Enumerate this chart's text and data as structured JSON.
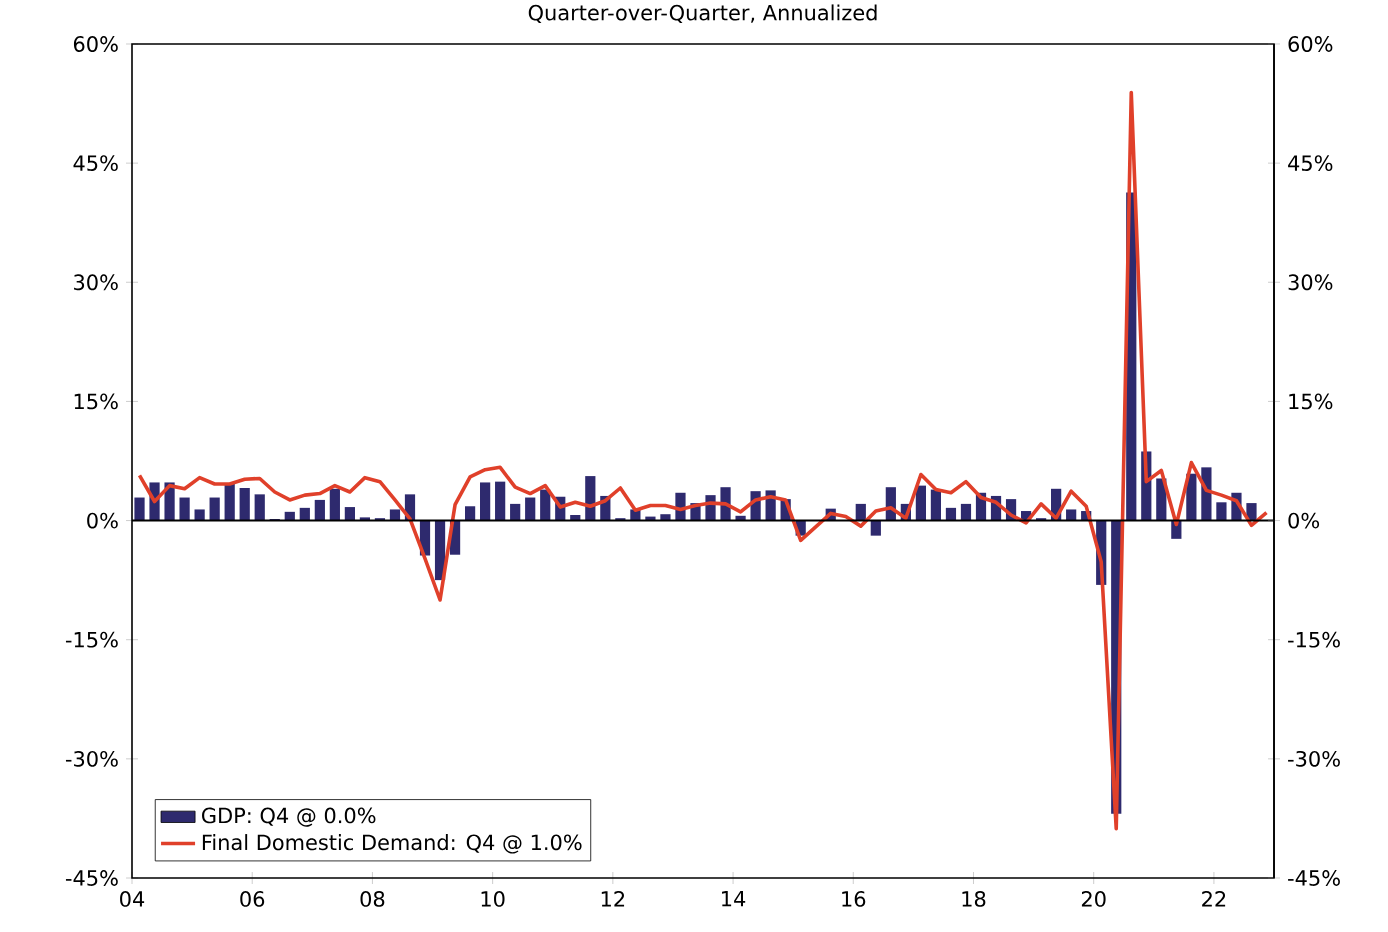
{
  "chart_data": {
    "type": "bar",
    "title": "Quarter-over-Quarter, Annualized",
    "x": [
      2004.125,
      2004.375,
      2004.625,
      2004.875,
      2005.125,
      2005.375,
      2005.625,
      2005.875,
      2006.125,
      2006.375,
      2006.625,
      2006.875,
      2007.125,
      2007.375,
      2007.625,
      2007.875,
      2008.125,
      2008.375,
      2008.625,
      2008.875,
      2009.125,
      2009.375,
      2009.625,
      2009.875,
      2010.125,
      2010.375,
      2010.625,
      2010.875,
      2011.125,
      2011.375,
      2011.625,
      2011.875,
      2012.125,
      2012.375,
      2012.625,
      2012.875,
      2013.125,
      2013.375,
      2013.625,
      2013.875,
      2014.125,
      2014.375,
      2014.625,
      2014.875,
      2015.125,
      2015.375,
      2015.625,
      2015.875,
      2016.125,
      2016.375,
      2016.625,
      2016.875,
      2017.125,
      2017.375,
      2017.625,
      2017.875,
      2018.125,
      2018.375,
      2018.625,
      2018.875,
      2019.125,
      2019.375,
      2019.625,
      2019.875,
      2020.125,
      2020.375,
      2020.625,
      2020.875,
      2021.125,
      2021.375,
      2021.625,
      2021.875,
      2022.125,
      2022.375,
      2022.625,
      2022.875
    ],
    "series": [
      {
        "name": "GDP: Q4 @ 0.0%",
        "color": "#2e2a6e",
        "values": [
          2.9,
          4.8,
          4.8,
          2.9,
          1.4,
          2.9,
          4.6,
          4.1,
          3.3,
          0.2,
          1.1,
          1.6,
          2.6,
          4.0,
          1.7,
          0.4,
          0.3,
          1.4,
          3.3,
          -4.4,
          -7.5,
          -4.3,
          1.8,
          4.8,
          4.9,
          2.1,
          2.9,
          3.9,
          3.0,
          0.7,
          5.6,
          3.1,
          0.3,
          1.4,
          0.5,
          0.8,
          3.5,
          2.2,
          3.2,
          4.2,
          0.6,
          3.7,
          3.8,
          2.7,
          -1.9,
          null,
          1.5,
          null,
          2.1,
          -1.9,
          4.2,
          2.1,
          4.4,
          3.9,
          1.6,
          2.1,
          3.5,
          3.1,
          2.7,
          1.2,
          0.3,
          4.0,
          1.4,
          1.2,
          -8.1,
          -36.9,
          41.3,
          8.7,
          5.3,
          -2.3,
          5.9,
          6.7,
          2.3,
          3.5,
          2.2,
          0.0
        ]
      },
      {
        "name": "Final Domestic Demand: Q4 @ 1.0%",
        "type": "line",
        "color": "#e0402a",
        "values": [
          5.7,
          2.4,
          4.4,
          4.0,
          5.4,
          4.6,
          4.6,
          5.2,
          5.3,
          3.6,
          2.6,
          3.2,
          3.4,
          4.4,
          3.6,
          5.4,
          4.9,
          2.6,
          0.2,
          -4.8,
          -10.0,
          2.0,
          5.5,
          6.4,
          6.7,
          4.2,
          3.4,
          4.4,
          1.7,
          2.3,
          1.8,
          2.5,
          4.1,
          1.3,
          1.9,
          1.9,
          1.4,
          1.9,
          2.2,
          2.1,
          1.1,
          2.6,
          3.0,
          2.6,
          -2.5,
          -0.8,
          0.9,
          0.5,
          -0.7,
          1.2,
          1.6,
          0.3,
          5.8,
          3.9,
          3.5,
          4.9,
          2.9,
          2.3,
          0.7,
          -0.3,
          2.1,
          0.3,
          3.7,
          1.8,
          -5.2,
          -38.8,
          53.9,
          4.9,
          6.3,
          -0.5,
          7.3,
          3.8,
          3.2,
          2.5,
          -0.6,
          1.0
        ]
      }
    ],
    "xlim": [
      2004,
      2023
    ],
    "xticks": [
      {
        "value": 2004,
        "label": "04"
      },
      {
        "value": 2006,
        "label": "06"
      },
      {
        "value": 2008,
        "label": "08"
      },
      {
        "value": 2010,
        "label": "10"
      },
      {
        "value": 2012,
        "label": "12"
      },
      {
        "value": 2014,
        "label": "14"
      },
      {
        "value": 2016,
        "label": "16"
      },
      {
        "value": 2018,
        "label": "18"
      },
      {
        "value": 2020,
        "label": "20"
      },
      {
        "value": 2022,
        "label": "22"
      }
    ],
    "ylim": [
      -45,
      60
    ],
    "yticks": [
      {
        "value": -45,
        "label": "-45%"
      },
      {
        "value": -30,
        "label": "-30%"
      },
      {
        "value": -15,
        "label": "-15%"
      },
      {
        "value": 0,
        "label": "0%"
      },
      {
        "value": 15,
        "label": "15%"
      },
      {
        "value": 30,
        "label": "30%"
      },
      {
        "value": 45,
        "label": "45%"
      },
      {
        "value": 60,
        "label": "60%"
      }
    ],
    "y2lim": [
      -45,
      60
    ],
    "y2ticks": [
      {
        "value": -45,
        "label": "-45%"
      },
      {
        "value": -30,
        "label": "-30%"
      },
      {
        "value": -15,
        "label": "-15%"
      },
      {
        "value": 0,
        "label": "0%"
      },
      {
        "value": 15,
        "label": "15%"
      },
      {
        "value": 30,
        "label": "30%"
      },
      {
        "value": 45,
        "label": "45%"
      },
      {
        "value": 60,
        "label": "60%"
      }
    ],
    "ref_lines": [
      {
        "axis": "y",
        "value": 0,
        "color": "#000000"
      }
    ],
    "legend": "bottom left",
    "grid": false
  }
}
